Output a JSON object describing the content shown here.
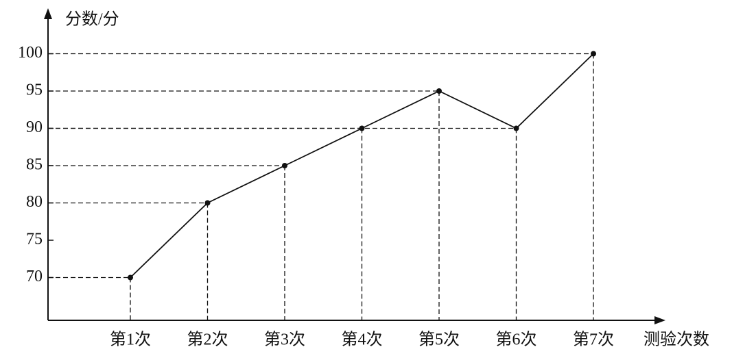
{
  "chart_data": {
    "type": "line",
    "y_axis_label": "分数/分",
    "x_axis_label": "测验次数",
    "categories": [
      "第1次",
      "第2次",
      "第3次",
      "第4次",
      "第5次",
      "第6次",
      "第7次"
    ],
    "values": [
      70,
      80,
      85,
      90,
      95,
      90,
      100
    ],
    "color": "#111111",
    "ylim": [
      65,
      105
    ],
    "yticks": [
      70,
      75,
      80,
      85,
      90,
      95,
      100
    ],
    "grid": false
  }
}
